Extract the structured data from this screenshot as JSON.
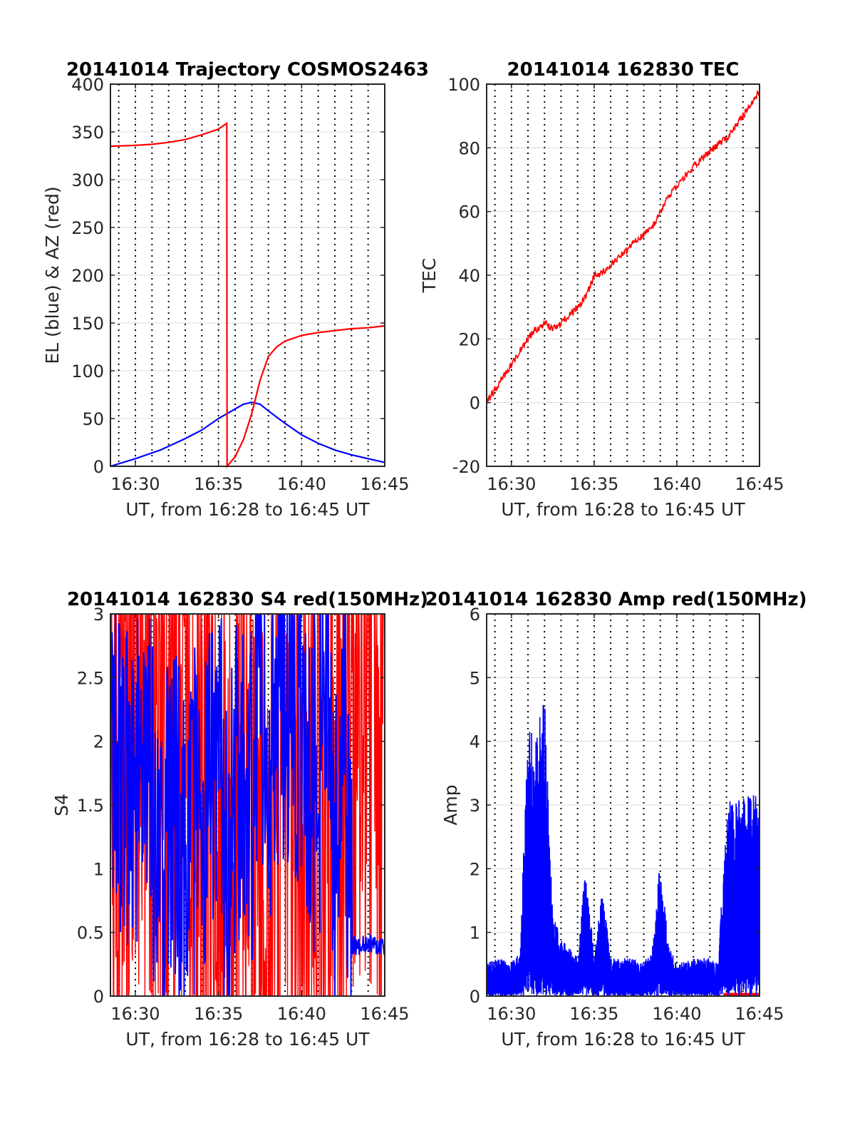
{
  "colors": {
    "red": "#ff0000",
    "blue": "#0000ff",
    "grid": "#dcdcdc",
    "axis": "#262626"
  },
  "chart_data": [
    {
      "type": "line",
      "title": "20141014 Trajectory COSMOS2463",
      "xlabel": "UT, from 16:28 to 16:45 UT",
      "ylabel": "EL (blue) & AZ (red)",
      "xlim": [
        "16:28:30",
        "16:45:00"
      ],
      "ylim": [
        0,
        400
      ],
      "x_ticks": [
        "16:30",
        "16:35",
        "16:40",
        "16:45"
      ],
      "y_ticks": [
        "0",
        "50",
        "100",
        "150",
        "200",
        "250",
        "300",
        "350",
        "400"
      ],
      "grid": true,
      "series": [
        {
          "color": "#0000ff",
          "x": [
            "16:28:30",
            "16:30:00",
            "16:31:30",
            "16:33:00",
            "16:34:00",
            "16:35:00",
            "16:36:00",
            "16:36:30",
            "16:37:00",
            "16:37:30",
            "16:38:00",
            "16:39:00",
            "16:40:00",
            "16:41:00",
            "16:42:00",
            "16:43:00",
            "16:44:00",
            "16:45:00"
          ],
          "y": [
            0,
            8,
            17,
            29,
            38,
            50,
            60,
            65,
            67,
            65,
            58,
            45,
            33,
            24,
            17,
            12,
            8,
            4
          ]
        },
        {
          "color": "#ff0000",
          "x": [
            "16:28:30",
            "16:30:00",
            "16:31:00",
            "16:32:00",
            "16:33:00",
            "16:34:00",
            "16:35:00",
            "16:35:30",
            "16:35:31",
            "16:36:00",
            "16:36:30",
            "16:37:00",
            "16:37:30",
            "16:38:00",
            "16:38:30",
            "16:39:00",
            "16:40:00",
            "16:41:00",
            "16:42:00",
            "16:43:00",
            "16:44:00",
            "16:45:00"
          ],
          "y": [
            335,
            336,
            337,
            339,
            342,
            347,
            353,
            359,
            0,
            10,
            28,
            55,
            90,
            115,
            125,
            131,
            137,
            140,
            142,
            144,
            145,
            147
          ]
        }
      ]
    },
    {
      "type": "line",
      "title": "20141014 162830 TEC",
      "xlabel": "UT, from 16:28 to 16:45 UT",
      "ylabel": "TEC",
      "xlim": [
        "16:28:30",
        "16:45:00"
      ],
      "ylim": [
        -20,
        100
      ],
      "x_ticks": [
        "16:30",
        "16:35",
        "16:40",
        "16:45"
      ],
      "y_ticks": [
        "-20",
        "0",
        "20",
        "40",
        "60",
        "80",
        "100"
      ],
      "grid": true,
      "series": [
        {
          "color": "#ff0000",
          "x": [
            "16:28:30",
            "16:29:00",
            "16:30:00",
            "16:31:00",
            "16:31:30",
            "16:32:00",
            "16:32:30",
            "16:33:00",
            "16:34:00",
            "16:34:30",
            "16:35:00",
            "16:35:30",
            "16:36:00",
            "16:37:00",
            "16:38:00",
            "16:38:30",
            "16:39:00",
            "16:39:30",
            "16:40:00",
            "16:41:00",
            "16:42:00",
            "16:43:00",
            "16:44:00",
            "16:45:00"
          ],
          "y": [
            0,
            4,
            12,
            20,
            23,
            25,
            23,
            25,
            30,
            33,
            40,
            41,
            43,
            48,
            53,
            55,
            60,
            65,
            68,
            74,
            79,
            83,
            90,
            98
          ]
        }
      ]
    },
    {
      "type": "line",
      "title": "20141014 162830 S4 red(150MHz)",
      "xlabel": "UT, from 16:28 to 16:45 UT",
      "ylabel": "S4",
      "xlim": [
        "16:28:30",
        "16:45:00"
      ],
      "ylim": [
        0,
        3
      ],
      "x_ticks": [
        "16:30",
        "16:35",
        "16:40",
        "16:45"
      ],
      "y_ticks": [
        "0",
        "0.5",
        "1",
        "1.5",
        "2",
        "2.5",
        "3"
      ],
      "grid": true,
      "series": [
        {
          "color": "#ff0000",
          "x": [
            "16:28:30",
            "16:29:00",
            "16:30:00",
            "16:31:00",
            "16:32:00",
            "16:33:00",
            "16:34:00",
            "16:35:00",
            "16:36:00",
            "16:37:00",
            "16:38:00",
            "16:39:00",
            "16:40:00",
            "16:41:00",
            "16:42:00",
            "16:43:00",
            "16:44:00",
            "16:45:00"
          ],
          "y": [
            1.5,
            2.5,
            3.0,
            2.2,
            2.0,
            2.5,
            1.5,
            1.0,
            2.0,
            1.5,
            0.3,
            2.5,
            1.5,
            2.0,
            0.8,
            3.0,
            3.0,
            3.0
          ]
        },
        {
          "color": "#0000ff",
          "x": [
            "16:28:30",
            "16:29:00",
            "16:30:00",
            "16:31:00",
            "16:31:30",
            "16:32:00",
            "16:33:00",
            "16:34:00",
            "16:35:00",
            "16:35:30",
            "16:36:00",
            "16:37:00",
            "16:37:30",
            "16:38:00",
            "16:39:00",
            "16:40:00",
            "16:41:00",
            "16:41:30",
            "16:42:00",
            "16:42:30",
            "16:43:00",
            "16:44:00",
            "16:45:00"
          ],
          "y": [
            1.5,
            1.8,
            1.6,
            1.7,
            0.6,
            1.4,
            1.2,
            1.5,
            2.0,
            0.9,
            1.6,
            1.5,
            2.5,
            1.8,
            2.5,
            2.2,
            1.5,
            2.8,
            0.8,
            2.5,
            0.4,
            0.4,
            0.4
          ]
        }
      ]
    },
    {
      "type": "line",
      "title": "20141014 162830 Amp red(150MHz)",
      "xlabel": "UT, from 16:28 to 16:45 UT",
      "ylabel": "Amp",
      "xlim": [
        "16:28:30",
        "16:45:00"
      ],
      "ylim": [
        0,
        6
      ],
      "x_ticks": [
        "16:30",
        "16:35",
        "16:40",
        "16:45"
      ],
      "y_ticks": [
        "0",
        "1",
        "2",
        "3",
        "4",
        "5",
        "6"
      ],
      "grid": true,
      "series": [
        {
          "color": "#ff0000",
          "x": [
            "16:28:30",
            "16:42:50",
            "16:42:51",
            "16:45:00"
          ],
          "y": [
            0,
            0,
            0.05,
            0.05
          ]
        },
        {
          "color": "#0000ff",
          "x": [
            "16:28:30",
            "16:29:00",
            "16:30:00",
            "16:30:30",
            "16:31:00",
            "16:31:30",
            "16:32:00",
            "16:32:30",
            "16:33:00",
            "16:34:00",
            "16:34:30",
            "16:35:00",
            "16:35:30",
            "16:36:00",
            "16:37:00",
            "16:38:00",
            "16:38:30",
            "16:39:00",
            "16:39:30",
            "16:40:00",
            "16:41:00",
            "16:42:00",
            "16:42:30",
            "16:43:00",
            "16:43:30",
            "16:44:00",
            "16:44:30",
            "16:45:00"
          ],
          "y": [
            0.5,
            0.6,
            0.55,
            0.7,
            4.2,
            4.1,
            4.8,
            1.3,
            0.9,
            0.6,
            2.1,
            0.6,
            1.7,
            0.6,
            0.6,
            0.55,
            0.7,
            2.2,
            0.8,
            0.5,
            0.6,
            0.6,
            0.5,
            3.0,
            3.2,
            3.1,
            3.2,
            3.1
          ]
        }
      ]
    }
  ]
}
